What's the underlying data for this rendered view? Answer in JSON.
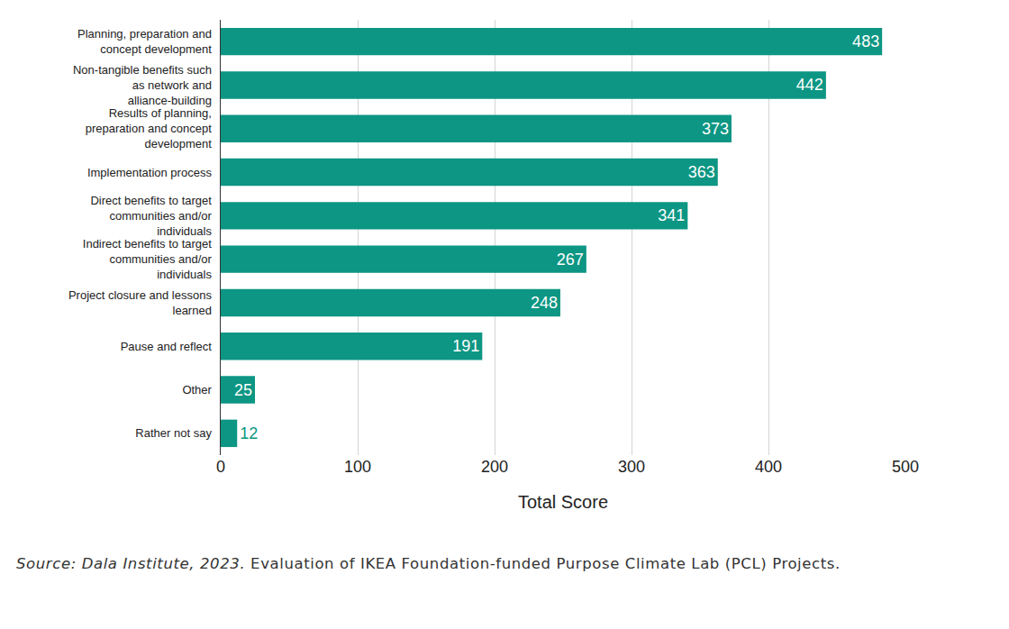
{
  "chart_data": {
    "type": "bar",
    "orientation": "horizontal",
    "categories": [
      "Planning, preparation and concept development",
      "Non-tangible benefits such as network and alliance-building",
      "Results of planning, preparation and concept development",
      "Implementation process",
      "Direct benefits to target communities and/or individuals",
      "Indirect benefits to target communities and/or individuals",
      "Project closure and lessons learned",
      "Pause and reflect",
      "Other",
      "Rather not say"
    ],
    "values": [
      483,
      442,
      373,
      363,
      341,
      267,
      248,
      191,
      25,
      12
    ],
    "color": "#0c9683",
    "x_label": "Total Score",
    "xlim": [
      0,
      500
    ],
    "xticks": [
      0,
      100,
      200,
      300,
      400,
      500
    ],
    "grid": true,
    "data_labels": true,
    "source": "Source: Dala Institute, 2023.",
    "caption": "Evaluation of IKEA Foundation-funded Purpose Climate Lab (PCL) Projects."
  }
}
